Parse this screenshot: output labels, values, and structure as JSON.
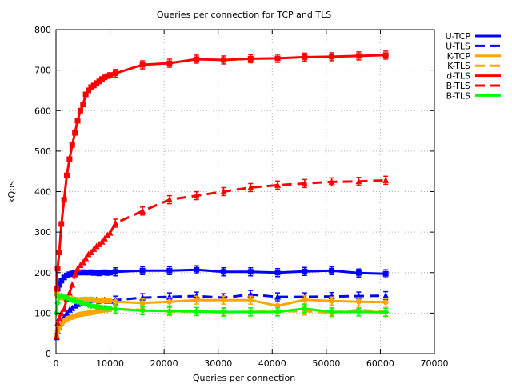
{
  "chart_data": {
    "type": "line",
    "title": "Queries per connection for TCP and TLS",
    "xlabel": "Queries per connection",
    "ylabel": "kQps",
    "xlim": [
      0,
      70000
    ],
    "ylim": [
      0,
      800
    ],
    "xticks": [
      0,
      10000,
      20000,
      30000,
      40000,
      50000,
      60000,
      70000
    ],
    "yticks": [
      0,
      100,
      200,
      300,
      400,
      500,
      600,
      700,
      800
    ],
    "grid": true,
    "legend_position": "outside-right-top",
    "series": [
      {
        "name": "U-TCP",
        "color": "#0000ff",
        "dash": "solid",
        "marker": "square",
        "x": [
          100,
          300,
          600,
          1000,
          1500,
          2000,
          2500,
          3000,
          3500,
          4000,
          4500,
          5000,
          5500,
          6000,
          6500,
          7000,
          7500,
          8000,
          8500,
          9000,
          9500,
          10000,
          11000,
          16000,
          21000,
          26000,
          31000,
          36000,
          41000,
          46000,
          51000,
          56000,
          61000
        ],
        "y": [
          150,
          160,
          170,
          180,
          188,
          193,
          196,
          198,
          199,
          200,
          200,
          201,
          200,
          200,
          201,
          199,
          200,
          198,
          200,
          201,
          199,
          200,
          202,
          205,
          205,
          207,
          202,
          202,
          200,
          203,
          205,
          199,
          197
        ]
      },
      {
        "name": "U-TLS",
        "color": "#0000ff",
        "dash": "dashed",
        "marker": "triangle",
        "x": [
          100,
          300,
          600,
          1000,
          1500,
          2000,
          2500,
          3000,
          3500,
          4000,
          4500,
          5000,
          5500,
          6000,
          6500,
          7000,
          7500,
          8000,
          8500,
          9000,
          9500,
          10000,
          11000,
          16000,
          21000,
          26000,
          31000,
          36000,
          41000,
          46000,
          51000,
          56000,
          61000
        ],
        "y": [
          40,
          55,
          65,
          75,
          90,
          100,
          108,
          112,
          118,
          122,
          125,
          128,
          130,
          131,
          132,
          133,
          132,
          130,
          131,
          132,
          130,
          130,
          132,
          138,
          140,
          142,
          138,
          146,
          140,
          140,
          141,
          142,
          143
        ]
      },
      {
        "name": "K-TCP",
        "color": "#ffa500",
        "dash": "solid",
        "marker": "circle",
        "x": [
          100,
          300,
          600,
          1000,
          1500,
          2000,
          2500,
          3000,
          3500,
          4000,
          4500,
          5000,
          5500,
          6000,
          6500,
          7000,
          7500,
          8000,
          8500,
          9000,
          9500,
          10000,
          11000,
          16000,
          21000,
          26000,
          31000,
          36000,
          41000,
          46000,
          51000,
          56000,
          61000
        ],
        "y": [
          150,
          142,
          140,
          138,
          137,
          136,
          135,
          135,
          134,
          133,
          133,
          133,
          134,
          133,
          134,
          132,
          131,
          131,
          130,
          131,
          130,
          130,
          128,
          125,
          128,
          132,
          132,
          132,
          118,
          133,
          130,
          128,
          127
        ]
      },
      {
        "name": "K-TLS",
        "color": "#ffa500",
        "dash": "dashed",
        "marker": "circle",
        "x": [
          100,
          300,
          600,
          1000,
          1500,
          2000,
          2500,
          3000,
          3500,
          4000,
          4500,
          5000,
          5500,
          6000,
          6500,
          7000,
          7500,
          8000,
          8500,
          9000,
          9500,
          10000,
          11000,
          16000,
          21000,
          26000,
          31000,
          36000,
          41000,
          46000,
          51000,
          56000,
          61000
        ],
        "y": [
          42,
          55,
          65,
          72,
          80,
          85,
          88,
          90,
          92,
          95,
          97,
          98,
          99,
          100,
          101,
          102,
          104,
          106,
          107,
          108,
          108,
          109,
          110,
          108,
          104,
          104,
          102,
          103,
          104,
          105,
          101,
          108,
          103
        ]
      },
      {
        "name": "d-TLS",
        "color": "#ff0000",
        "dash": "solid",
        "marker": "square",
        "x": [
          100,
          300,
          600,
          1000,
          1500,
          2000,
          2500,
          3000,
          3500,
          4000,
          4500,
          5000,
          5500,
          6000,
          6500,
          7000,
          7500,
          8000,
          8500,
          9000,
          9500,
          10000,
          11000,
          16000,
          21000,
          26000,
          31000,
          36000,
          41000,
          46000,
          51000,
          56000,
          61000
        ],
        "y": [
          160,
          210,
          250,
          320,
          380,
          440,
          480,
          515,
          545,
          575,
          600,
          615,
          640,
          650,
          658,
          662,
          668,
          672,
          678,
          682,
          685,
          688,
          692,
          713,
          717,
          727,
          725,
          728,
          729,
          732,
          733,
          735,
          737
        ]
      },
      {
        "name": "B-TLS",
        "color": "#ff0000",
        "dash": "dashed",
        "marker": "triangle",
        "x": [
          100,
          300,
          600,
          1000,
          1500,
          2000,
          2500,
          3000,
          3500,
          4000,
          4500,
          5000,
          5500,
          6000,
          6500,
          7000,
          7500,
          8000,
          8500,
          9000,
          9500,
          10000,
          11000,
          16000,
          21000,
          26000,
          31000,
          36000,
          41000,
          46000,
          51000,
          56000,
          61000
        ],
        "y": [
          42,
          75,
          88,
          100,
          110,
          135,
          150,
          170,
          195,
          210,
          218,
          225,
          235,
          245,
          250,
          258,
          265,
          270,
          276,
          284,
          292,
          298,
          322,
          352,
          380,
          390,
          400,
          410,
          416,
          420,
          424,
          425,
          428
        ]
      },
      {
        "name": "B-TLS",
        "color": "#00ff00",
        "dash": "solid",
        "marker": "diamond",
        "x": [
          100,
          300,
          600,
          1000,
          1500,
          2000,
          2500,
          3000,
          3500,
          4000,
          4500,
          5000,
          5500,
          6000,
          6500,
          7000,
          7500,
          8000,
          8500,
          9000,
          9500,
          10000,
          11000,
          16000,
          21000,
          26000,
          31000,
          36000,
          41000,
          46000,
          51000,
          56000,
          61000
        ],
        "y": [
          100,
          125,
          140,
          143,
          140,
          138,
          135,
          132,
          130,
          128,
          126,
          124,
          122,
          120,
          118,
          117,
          116,
          115,
          114,
          113,
          112,
          112,
          110,
          106,
          105,
          104,
          103,
          103,
          103,
          111,
          103,
          103,
          102
        ]
      }
    ]
  }
}
